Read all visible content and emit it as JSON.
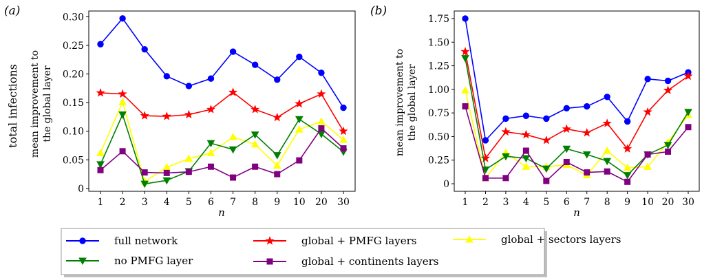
{
  "figure": {
    "panel_labels": [
      "(a)",
      "(b)"
    ],
    "left_outer_ylabel": "total infections"
  },
  "legend": {
    "entries": [
      {
        "label": "full network",
        "series": "full"
      },
      {
        "label": "global + PMFG layers",
        "series": "pmfg"
      },
      {
        "label": "global + sectors layers",
        "series": "sectors"
      },
      {
        "label": "no PMFG layer",
        "series": "nopmfg"
      },
      {
        "label": "global + continents layers",
        "series": "continents"
      }
    ]
  },
  "series_style": {
    "full": {
      "color": "#0000ff",
      "marker": "circle"
    },
    "pmfg": {
      "color": "#ff0000",
      "marker": "star"
    },
    "sectors": {
      "color": "#ffff00",
      "marker": "triangle-up"
    },
    "nopmfg": {
      "color": "#008000",
      "marker": "triangle-down"
    },
    "continents": {
      "color": "#800080",
      "marker": "square"
    }
  },
  "chart_data": [
    {
      "type": "line",
      "panel": "(a)",
      "xlabel": "n",
      "ylabel": [
        "mean improvement to",
        "the global layer"
      ],
      "categories": [
        "1",
        "2",
        "3",
        "4",
        "5",
        "6",
        "7",
        "8",
        "9",
        "10",
        "20",
        "30"
      ],
      "ylim": [
        -0.005,
        0.31
      ],
      "yticks": [
        0,
        0.05,
        0.1,
        0.15,
        0.2,
        0.25,
        0.3
      ],
      "ytick_labels": [
        "0",
        "0.05",
        "0.10",
        "0.15",
        "0.20",
        "0.25",
        "0.30"
      ],
      "grid": false,
      "series": [
        {
          "key": "full",
          "name": "full network",
          "values": [
            0.252,
            0.297,
            0.243,
            0.196,
            0.179,
            0.192,
            0.239,
            0.216,
            0.19,
            0.23,
            0.202,
            0.141
          ]
        },
        {
          "key": "pmfg",
          "name": "global + PMFG layers",
          "values": [
            0.167,
            0.165,
            0.127,
            0.126,
            0.129,
            0.138,
            0.168,
            0.138,
            0.124,
            0.148,
            0.165,
            0.1
          ]
        },
        {
          "key": "sectors",
          "name": "global + sectors layers",
          "values": [
            0.062,
            0.151,
            0.012,
            0.037,
            0.052,
            0.062,
            0.09,
            0.077,
            0.04,
            0.103,
            0.117,
            0.085
          ]
        },
        {
          "key": "nopmfg",
          "name": "no PMFG layer",
          "values": [
            0.042,
            0.129,
            0.008,
            0.014,
            0.03,
            0.079,
            0.068,
            0.094,
            0.058,
            0.121,
            0.095,
            0.064
          ]
        },
        {
          "key": "continents",
          "name": "global + continents layers",
          "values": [
            0.032,
            0.065,
            0.028,
            0.027,
            0.029,
            0.038,
            0.019,
            0.038,
            0.025,
            0.049,
            0.105,
            0.07
          ]
        }
      ]
    },
    {
      "type": "line",
      "panel": "(b)",
      "xlabel": "n",
      "ylabel": [
        "mean improvement to",
        "the global layer"
      ],
      "categories": [
        "1",
        "2",
        "3",
        "4",
        "5",
        "6",
        "7",
        "8",
        "9",
        "10",
        "20",
        "30"
      ],
      "ylim": [
        -0.08,
        1.83
      ],
      "yticks": [
        0,
        0.25,
        0.5,
        0.75,
        1.0,
        1.25,
        1.5,
        1.75
      ],
      "ytick_labels": [
        "0",
        "0.25",
        "0.50",
        "0.75",
        "1.00",
        "1.25",
        "1.50",
        "1.75"
      ],
      "grid": false,
      "series": [
        {
          "key": "full",
          "name": "full network",
          "values": [
            1.75,
            0.46,
            0.69,
            0.72,
            0.69,
            0.8,
            0.82,
            0.92,
            0.66,
            1.11,
            1.09,
            1.18
          ]
        },
        {
          "key": "pmfg",
          "name": "global + PMFG layers",
          "values": [
            1.4,
            0.27,
            0.55,
            0.52,
            0.46,
            0.58,
            0.54,
            0.64,
            0.37,
            0.76,
            0.99,
            1.14
          ]
        },
        {
          "key": "sectors",
          "name": "global + sectors layers",
          "values": [
            0.99,
            0.06,
            0.33,
            0.18,
            0.18,
            0.2,
            0.09,
            0.35,
            0.17,
            0.18,
            0.44,
            0.73
          ]
        },
        {
          "key": "nopmfg",
          "name": "no PMFG layer",
          "values": [
            1.33,
            0.15,
            0.29,
            0.27,
            0.16,
            0.37,
            0.31,
            0.24,
            0.09,
            0.31,
            0.41,
            0.76
          ]
        },
        {
          "key": "continents",
          "name": "global + continents layers",
          "values": [
            0.82,
            0.06,
            0.06,
            0.35,
            0.03,
            0.23,
            0.12,
            0.13,
            0.02,
            0.31,
            0.34,
            0.6
          ]
        }
      ]
    }
  ]
}
